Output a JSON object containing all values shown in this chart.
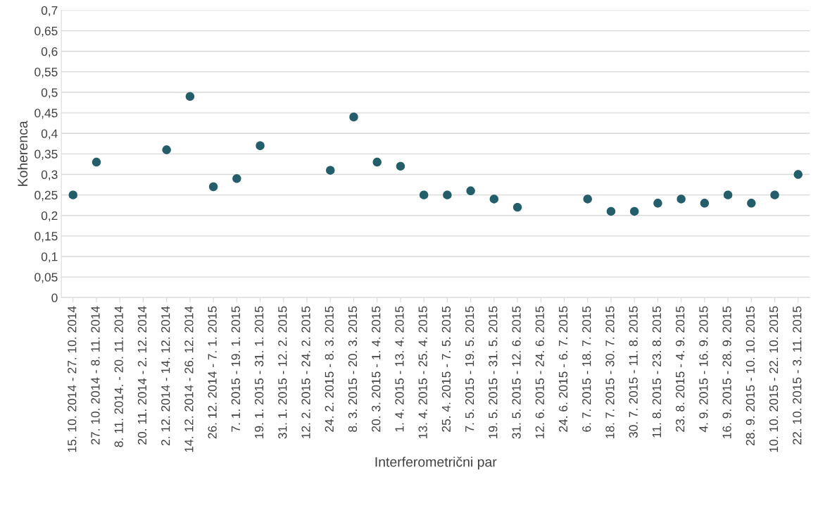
{
  "chart_data": {
    "type": "scatter",
    "xlabel": "Interferometrični par",
    "ylabel": "Koherenca",
    "categories": [
      "15. 10. 2014 - 27. 10. 2014",
      "27. 10. 2014 - 8. 11. 2014",
      "8. 11. 2014. - 20. 11. 2014",
      "20. 11. 2014 - 2. 12. 2014",
      "2. 12. 2014 - 14. 12. 2014",
      "14. 12. 2014 - 26. 12. 2014",
      "26. 12. 2014 - 7. 1. 2015",
      "7. 1. 2015 - 19. 1. 2015",
      "19. 1. 2015 - 31. 1. 2015",
      "31. 1. 2015 - 12. 2. 2015",
      "12. 2. 2015 - 24. 2. 2015",
      "24. 2. 2015 - 8. 3. 2015",
      "8. 3. 2015 - 20. 3. 2015",
      "20. 3. 2015 - 1. 4. 2015",
      "1. 4. 2015 - 13. 4. 2015",
      "13. 4. 2015 - 25. 4. 2015",
      "25. 4. 2015 - 7. 5. 2015",
      "7. 5. 2015 - 19. 5. 2015",
      "19. 5. 2015 - 31. 5. 2015",
      "31. 5. 2015 - 12. 6. 2015",
      "12. 6. 2015 - 24. 6. 2015",
      "24. 6. 2015 - 6. 7. 2015",
      "6. 7. 2015 - 18. 7. 2015",
      "18. 7. 2015 - 30. 7. 2015",
      "30. 7. 2015 - 11. 8. 2015",
      "11. 8. 2015 - 23. 8. 2015",
      "23. 8. 2015 - 4. 9. 2015",
      "4. 9. 2015 - 16. 9. 2015",
      "16. 9. 2015 - 28. 9. 2015",
      "28. 9. 2015 - 10. 10. 2015",
      "10. 10. 2015 - 22. 10. 2015",
      "22. 10. 2015 - 3. 11. 2015"
    ],
    "values": [
      0.25,
      0.33,
      null,
      null,
      0.36,
      0.49,
      0.27,
      0.29,
      0.37,
      null,
      null,
      0.31,
      0.44,
      0.33,
      0.32,
      0.25,
      0.25,
      0.26,
      0.24,
      0.22,
      null,
      null,
      0.24,
      0.21,
      0.21,
      0.23,
      0.24,
      0.23,
      0.25,
      0.23,
      0.25,
      0.3
    ],
    "color": "#255e6b",
    "marker": "circle",
    "grid": "y",
    "legend": false,
    "ylim": [
      0,
      0.7
    ],
    "yticks": [
      0,
      {
        "value": 0.05,
        "label": "0,05"
      },
      {
        "value": 0.1,
        "label": "0,1"
      },
      {
        "value": 0.15,
        "label": "0,15"
      },
      {
        "value": 0.2,
        "label": "0,2"
      },
      {
        "value": 0.25,
        "label": "0,25"
      },
      {
        "value": 0.3,
        "label": "0,3"
      },
      {
        "value": 0.35,
        "label": "0,35"
      },
      {
        "value": 0.4,
        "label": "0,4"
      },
      {
        "value": 0.45,
        "label": "0,45"
      },
      {
        "value": 0.5,
        "label": "0,5"
      },
      {
        "value": 0.55,
        "label": "0,55"
      },
      {
        "value": 0.6,
        "label": "0,6"
      },
      {
        "value": 0.65,
        "label": "0,65"
      },
      {
        "value": 0.7,
        "label": "0,7"
      }
    ]
  }
}
